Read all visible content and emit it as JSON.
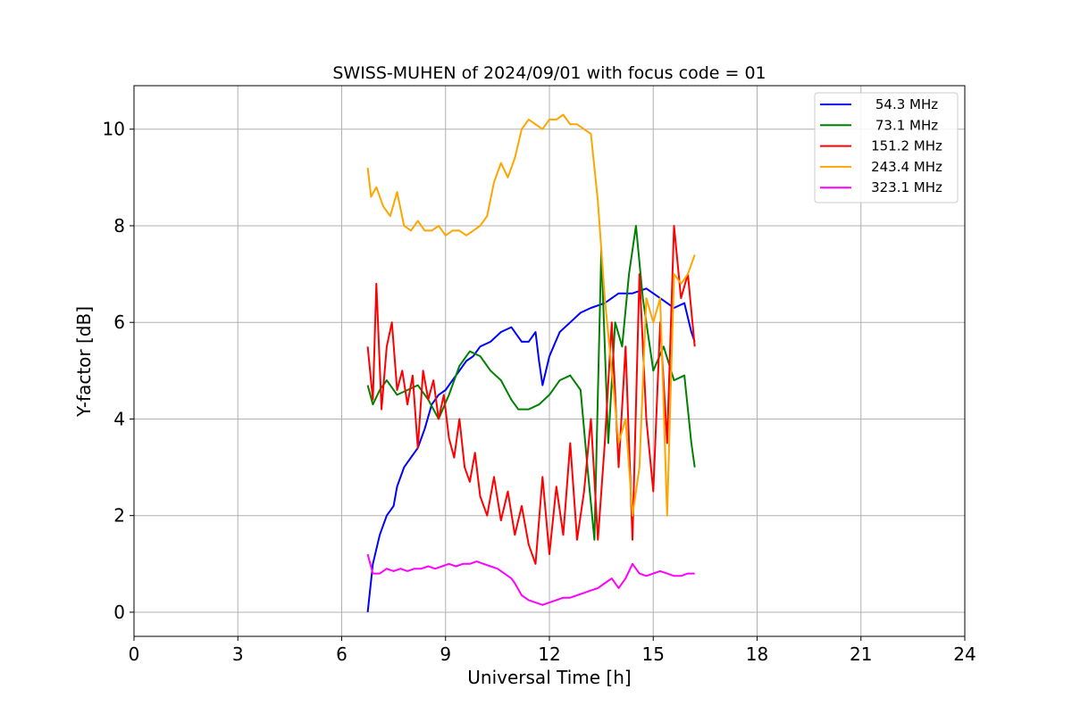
{
  "chart_data": {
    "type": "line",
    "title": "SWISS-MUHEN of 2024/09/01 with focus code = 01",
    "xlabel": "Universal Time [h]",
    "ylabel": "Y-factor [dB]",
    "xlim": [
      0,
      24
    ],
    "ylim": [
      -0.5,
      10.9
    ],
    "xticks": [
      0,
      3,
      6,
      9,
      12,
      15,
      18,
      21,
      24
    ],
    "yticks": [
      0,
      2,
      4,
      6,
      8,
      10
    ],
    "grid": true,
    "legend_position": "top-right",
    "series": [
      {
        "name": "54.3 MHz",
        "color": "#0000ff",
        "x": [
          6.75,
          6.9,
          7.1,
          7.3,
          7.5,
          7.6,
          7.8,
          8.0,
          8.2,
          8.4,
          8.6,
          8.8,
          9.0,
          9.2,
          9.4,
          9.6,
          9.8,
          10.0,
          10.3,
          10.6,
          10.9,
          11.2,
          11.4,
          11.6,
          11.7,
          11.8,
          12.0,
          12.3,
          12.6,
          12.9,
          13.2,
          13.6,
          14.0,
          14.4,
          14.8,
          15.2,
          15.6,
          15.9,
          16.1,
          16.2
        ],
        "values": [
          0.0,
          1.0,
          1.6,
          2.0,
          2.2,
          2.6,
          3.0,
          3.2,
          3.4,
          3.8,
          4.3,
          4.5,
          4.6,
          4.8,
          5.0,
          5.2,
          5.3,
          5.5,
          5.6,
          5.8,
          5.9,
          5.6,
          5.6,
          5.8,
          5.2,
          4.7,
          5.3,
          5.8,
          6.0,
          6.2,
          6.3,
          6.4,
          6.6,
          6.6,
          6.7,
          6.5,
          6.3,
          6.4,
          5.8,
          5.6
        ]
      },
      {
        "name": "73.1 MHz",
        "color": "#008000",
        "x": [
          6.75,
          6.9,
          7.1,
          7.3,
          7.6,
          7.9,
          8.2,
          8.5,
          8.8,
          9.1,
          9.4,
          9.7,
          10.0,
          10.3,
          10.6,
          10.9,
          11.1,
          11.4,
          11.7,
          12.0,
          12.3,
          12.6,
          12.9,
          13.1,
          13.3,
          13.5,
          13.7,
          13.9,
          14.1,
          14.3,
          14.5,
          14.7,
          15.0,
          15.3,
          15.6,
          15.9,
          16.1,
          16.2
        ],
        "values": [
          4.7,
          4.3,
          4.6,
          4.8,
          4.5,
          4.6,
          4.7,
          4.4,
          4.0,
          4.5,
          5.1,
          5.4,
          5.3,
          5.0,
          4.8,
          4.4,
          4.2,
          4.2,
          4.3,
          4.5,
          4.8,
          4.9,
          4.6,
          3.0,
          1.5,
          7.5,
          3.5,
          6.0,
          5.5,
          7.0,
          8.0,
          6.5,
          5.0,
          5.5,
          4.8,
          4.9,
          3.5,
          3.0
        ]
      },
      {
        "name": "151.2 MHz",
        "color": "#ff0000",
        "x": [
          6.75,
          6.9,
          7.0,
          7.15,
          7.3,
          7.45,
          7.6,
          7.75,
          7.9,
          8.05,
          8.2,
          8.35,
          8.5,
          8.65,
          8.8,
          8.95,
          9.1,
          9.25,
          9.4,
          9.55,
          9.7,
          9.85,
          10.0,
          10.2,
          10.4,
          10.6,
          10.8,
          11.0,
          11.2,
          11.4,
          11.6,
          11.8,
          12.0,
          12.2,
          12.4,
          12.6,
          12.8,
          13.0,
          13.2,
          13.4,
          13.6,
          13.8,
          14.0,
          14.2,
          14.4,
          14.6,
          14.8,
          15.0,
          15.2,
          15.4,
          15.6,
          15.8,
          16.0,
          16.2
        ],
        "values": [
          5.5,
          4.4,
          6.8,
          4.2,
          5.5,
          6.0,
          4.6,
          5.0,
          4.3,
          4.9,
          3.4,
          5.0,
          4.4,
          4.8,
          4.0,
          4.5,
          3.6,
          3.2,
          4.0,
          3.0,
          2.7,
          3.3,
          2.4,
          2.0,
          2.8,
          1.9,
          2.5,
          1.6,
          2.2,
          1.4,
          1.0,
          2.8,
          1.2,
          2.6,
          1.6,
          3.5,
          1.5,
          2.5,
          4.0,
          1.5,
          3.5,
          6.0,
          3.0,
          5.5,
          1.5,
          7.0,
          4.0,
          2.5,
          6.0,
          3.5,
          8.0,
          6.5,
          7.0,
          5.5
        ]
      },
      {
        "name": "243.4 MHz",
        "color": "#ffa500",
        "x": [
          6.75,
          6.85,
          7.0,
          7.2,
          7.4,
          7.6,
          7.8,
          8.0,
          8.2,
          8.4,
          8.6,
          8.8,
          9.0,
          9.2,
          9.4,
          9.6,
          9.8,
          10.0,
          10.2,
          10.4,
          10.6,
          10.8,
          11.0,
          11.2,
          11.4,
          11.6,
          11.8,
          12.0,
          12.2,
          12.4,
          12.6,
          12.8,
          13.0,
          13.2,
          13.4,
          13.6,
          13.8,
          14.0,
          14.2,
          14.4,
          14.6,
          14.8,
          15.0,
          15.2,
          15.4,
          15.6,
          15.8,
          16.0,
          16.2
        ],
        "values": [
          9.2,
          8.6,
          8.8,
          8.4,
          8.2,
          8.7,
          8.0,
          7.9,
          8.1,
          7.9,
          7.9,
          8.0,
          7.8,
          7.9,
          7.9,
          7.8,
          7.9,
          8.0,
          8.2,
          8.9,
          9.3,
          9.0,
          9.4,
          10.0,
          10.2,
          10.1,
          10.0,
          10.2,
          10.2,
          10.3,
          10.1,
          10.1,
          10.0,
          9.9,
          8.5,
          6.5,
          5.0,
          3.5,
          4.0,
          2.0,
          3.0,
          6.5,
          6.0,
          6.5,
          2.0,
          7.0,
          6.8,
          7.0,
          7.4
        ]
      },
      {
        "name": "323.1 MHz",
        "color": "#ff00ff",
        "x": [
          6.75,
          6.9,
          7.1,
          7.3,
          7.5,
          7.7,
          7.9,
          8.1,
          8.3,
          8.5,
          8.7,
          8.9,
          9.1,
          9.3,
          9.5,
          9.7,
          9.9,
          10.1,
          10.3,
          10.5,
          10.7,
          10.9,
          11.0,
          11.2,
          11.4,
          11.6,
          11.8,
          12.0,
          12.2,
          12.4,
          12.6,
          12.8,
          13.0,
          13.2,
          13.4,
          13.6,
          13.8,
          14.0,
          14.2,
          14.4,
          14.6,
          14.8,
          15.0,
          15.2,
          15.4,
          15.6,
          15.8,
          16.0,
          16.2
        ],
        "values": [
          1.2,
          0.8,
          0.8,
          0.9,
          0.85,
          0.9,
          0.85,
          0.9,
          0.9,
          0.95,
          0.9,
          0.95,
          1.0,
          0.95,
          1.0,
          1.0,
          1.05,
          1.0,
          0.95,
          0.9,
          0.8,
          0.7,
          0.6,
          0.35,
          0.25,
          0.2,
          0.15,
          0.2,
          0.25,
          0.3,
          0.3,
          0.35,
          0.4,
          0.45,
          0.5,
          0.6,
          0.7,
          0.5,
          0.7,
          1.0,
          0.8,
          0.75,
          0.8,
          0.85,
          0.8,
          0.75,
          0.75,
          0.8,
          0.8
        ]
      }
    ]
  }
}
